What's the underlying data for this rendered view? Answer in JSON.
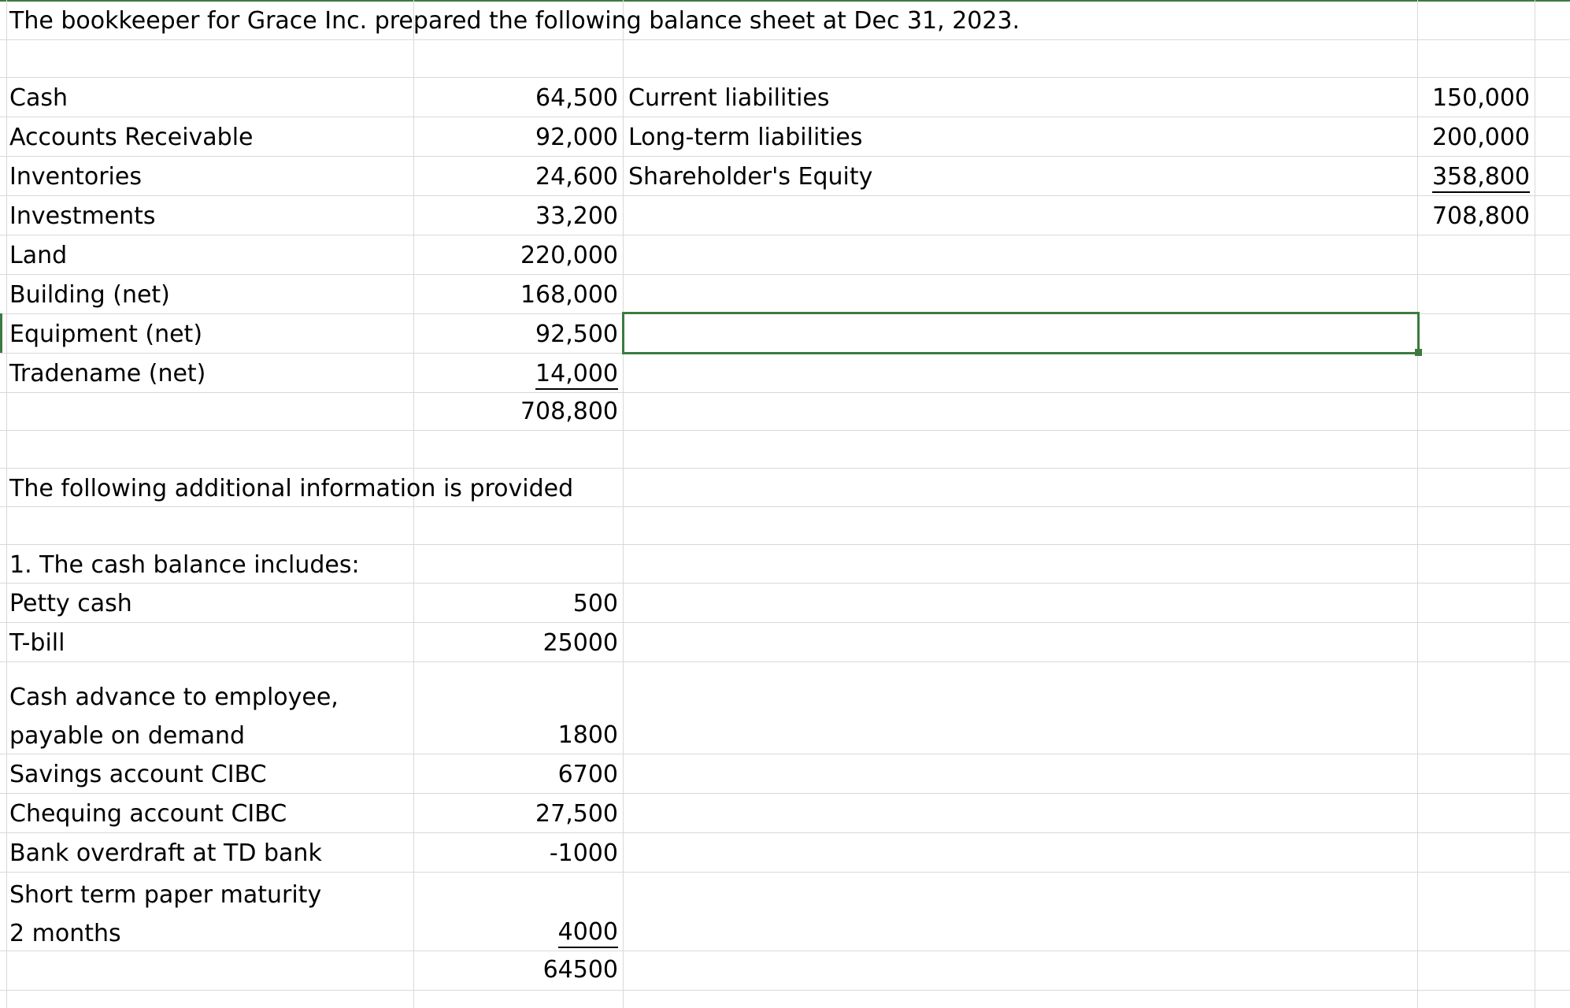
{
  "sheet": {
    "title": "The bookkeeper for Grace Inc. prepared the following balance sheet at Dec 31, 2023.",
    "assets": [
      {
        "label": "Cash",
        "value": "64,500"
      },
      {
        "label": "Accounts Receivable",
        "value": "92,000"
      },
      {
        "label": "Inventories",
        "value": "24,600"
      },
      {
        "label": "Investments",
        "value": "33,200"
      },
      {
        "label": "Land",
        "value": "220,000"
      },
      {
        "label": "Building (net)",
        "value": "168,000"
      },
      {
        "label": "Equipment (net)",
        "value": "92,500"
      },
      {
        "label": "Tradename (net)",
        "value": "14,000"
      }
    ],
    "assets_total": "708,800",
    "liabilities": [
      {
        "label": "Current liabilities",
        "value": "150,000"
      },
      {
        "label": "Long-term liabilities",
        "value": "200,000"
      },
      {
        "label": "Shareholder's Equity",
        "value": "358,800"
      }
    ],
    "liabilities_total": "708,800",
    "additional_heading": "The following additional information is provided",
    "cash_heading": "1. The cash balance includes:",
    "cash_items": [
      {
        "label": "Petty cash",
        "value": "500"
      },
      {
        "label": "T-bill",
        "value": "25000"
      },
      {
        "label": "Cash advance to employee, payable on demand",
        "value": "1800"
      },
      {
        "label": "Savings account CIBC",
        "value": "6700"
      },
      {
        "label": "Chequing account CIBC",
        "value": "27,500"
      },
      {
        "label": "Bank overdraft at TD bank",
        "value": "-1000"
      },
      {
        "label": "Short term paper maturity 2 months",
        "value": "4000"
      }
    ],
    "cash_total": "64500"
  }
}
